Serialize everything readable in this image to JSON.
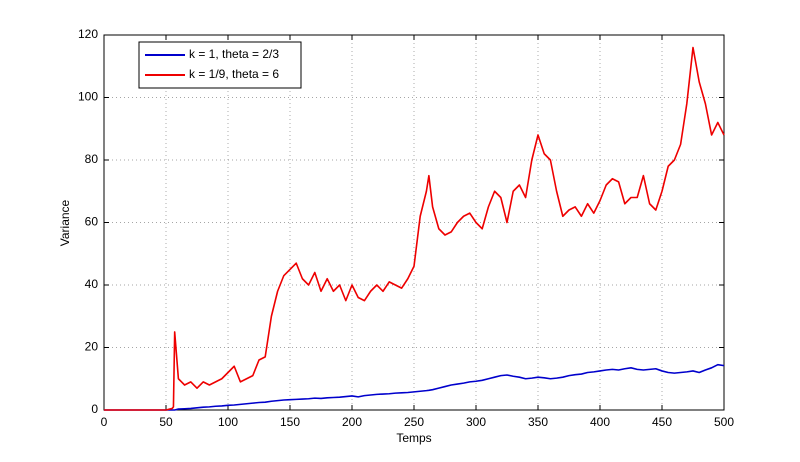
{
  "chart_data": {
    "type": "line",
    "x_label": "Temps",
    "y_label": "Variance",
    "x": [
      0,
      5,
      10,
      15,
      20,
      25,
      30,
      35,
      40,
      45,
      50,
      55,
      56,
      57,
      60,
      65,
      70,
      75,
      80,
      85,
      90,
      95,
      100,
      105,
      110,
      115,
      120,
      125,
      130,
      135,
      140,
      145,
      150,
      155,
      160,
      165,
      170,
      175,
      180,
      185,
      190,
      195,
      200,
      205,
      210,
      215,
      220,
      225,
      230,
      235,
      240,
      245,
      250,
      255,
      260,
      262,
      265,
      270,
      275,
      280,
      285,
      290,
      295,
      300,
      305,
      310,
      315,
      320,
      325,
      330,
      335,
      340,
      345,
      350,
      355,
      360,
      365,
      370,
      375,
      380,
      385,
      390,
      395,
      400,
      405,
      410,
      415,
      420,
      425,
      430,
      435,
      440,
      445,
      450,
      455,
      460,
      465,
      470,
      475,
      480,
      485,
      490,
      495,
      500
    ],
    "series": [
      {
        "name": "k = 1, theta = 2/3",
        "color": "#0000cc",
        "values": [
          0,
          0,
          0,
          0,
          0,
          0,
          0,
          0,
          0,
          0,
          0,
          0,
          0,
          0,
          0.3,
          0.4,
          0.5,
          0.7,
          0.9,
          1,
          1.2,
          1.3,
          1.5,
          1.6,
          1.8,
          2,
          2.2,
          2.4,
          2.5,
          2.8,
          3,
          3.2,
          3.3,
          3.4,
          3.5,
          3.6,
          3.8,
          3.7,
          3.9,
          4,
          4.1,
          4.3,
          4.5,
          4.2,
          4.6,
          4.8,
          5,
          5.1,
          5.2,
          5.4,
          5.5,
          5.6,
          5.8,
          6,
          6.2,
          6.3,
          6.5,
          7,
          7.5,
          8,
          8.3,
          8.6,
          9,
          9.2,
          9.5,
          10,
          10.5,
          11,
          11.2,
          10.8,
          10.5,
          10,
          10.2,
          10.5,
          10.3,
          10,
          10.2,
          10.5,
          11,
          11.3,
          11.5,
          12,
          12.2,
          12.5,
          12.8,
          13,
          12.8,
          13.2,
          13.5,
          13,
          12.8,
          13,
          13.2,
          12.5,
          12,
          11.8,
          12,
          12.2,
          12.5,
          12,
          12.8,
          13.5,
          14.5,
          14.2
        ]
      },
      {
        "name": "k = 1/9, theta = 6",
        "color": "#ee0000",
        "values": [
          0,
          0,
          0,
          0,
          0,
          0,
          0,
          0,
          0,
          0,
          0,
          0.5,
          1,
          25,
          10,
          8,
          9,
          7,
          9,
          8,
          9,
          10,
          12,
          14,
          9,
          10,
          11,
          16,
          17,
          30,
          38,
          43,
          45,
          47,
          42,
          40,
          44,
          38,
          42,
          38,
          40,
          35,
          40,
          36,
          35,
          38,
          40,
          38,
          41,
          40,
          39,
          42,
          46,
          62,
          70,
          75,
          65,
          58,
          56,
          57,
          60,
          62,
          63,
          60,
          58,
          65,
          70,
          68,
          60,
          70,
          72,
          68,
          80,
          88,
          82,
          80,
          70,
          62,
          64,
          65,
          62,
          66,
          63,
          67,
          72,
          74,
          73,
          66,
          68,
          68,
          75,
          66,
          64,
          70,
          78,
          80,
          85,
          98,
          116,
          105,
          98,
          88,
          92,
          88
        ]
      }
    ],
    "xlim": [
      0,
      500
    ],
    "xticks": [
      0,
      50,
      100,
      150,
      200,
      250,
      300,
      350,
      400,
      450,
      500
    ],
    "ylim": [
      0,
      120
    ],
    "yticks": [
      0,
      20,
      40,
      60,
      80,
      100,
      120
    ],
    "grid": true,
    "legend": "upper left"
  }
}
